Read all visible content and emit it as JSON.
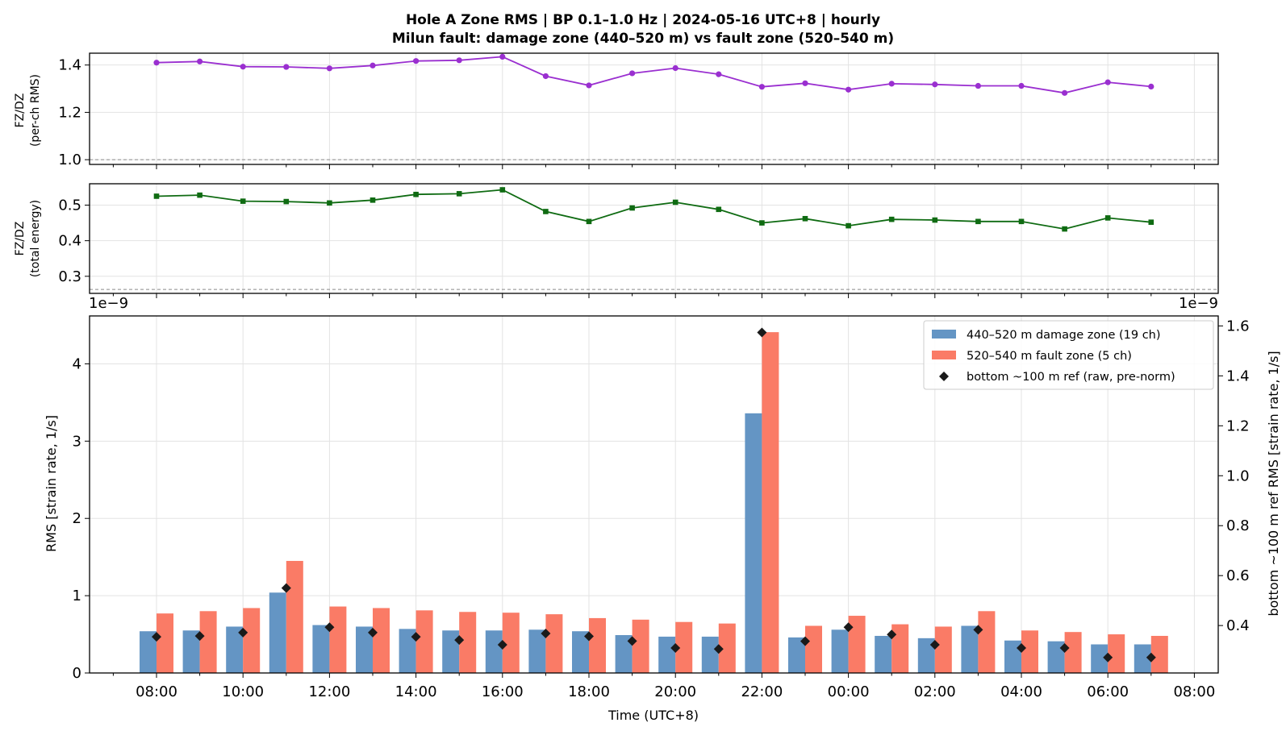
{
  "figure": {
    "title_line1": "Hole A Zone RMS  |  BP 0.1–1.0 Hz  |  2024-05-16 UTC+8  |  hourly",
    "title_line2": "Milun fault: damage zone (440–520 m) vs fault zone (520–540 m)"
  },
  "colors": {
    "damage": "#6495c4",
    "fault": "#fa7b66",
    "ref": "#1a1a1a",
    "ratio_rms": "#9a2fd0",
    "ratio_energy": "#0f6b12"
  },
  "chart_data": [
    {
      "type": "line",
      "ylabel_line1": "FZ/DZ",
      "ylabel_line2": "(per-ch RMS)",
      "ylim": [
        0.98,
        1.45
      ],
      "yticks": [
        1.0,
        1.2,
        1.4
      ],
      "ytick_labels": [
        "1.0",
        "1.2",
        "1.4"
      ],
      "reference_line": 1.0,
      "grid": true,
      "series": [
        {
          "values": [
            1.41,
            1.415,
            1.393,
            1.392,
            1.386,
            1.398,
            1.417,
            1.42,
            1.435,
            1.353,
            1.314,
            1.365,
            1.387,
            1.361,
            1.308,
            1.323,
            1.296,
            1.321,
            1.318,
            1.312,
            1.312,
            1.282,
            1.327,
            1.309
          ]
        }
      ]
    },
    {
      "type": "line",
      "ylabel_line1": "FZ/DZ",
      "ylabel_line2": "(total energy)",
      "ylim": [
        0.252,
        0.56
      ],
      "yticks": [
        0.3,
        0.4,
        0.5
      ],
      "ytick_labels": [
        "0.3",
        "0.4",
        "0.5"
      ],
      "reference_line": 0.263,
      "grid": true,
      "series": [
        {
          "values": [
            0.525,
            0.528,
            0.511,
            0.51,
            0.506,
            0.514,
            0.53,
            0.532,
            0.543,
            0.482,
            0.454,
            0.492,
            0.508,
            0.488,
            0.45,
            0.462,
            0.442,
            0.46,
            0.458,
            0.454,
            0.454,
            0.433,
            0.464,
            0.452
          ]
        }
      ]
    },
    {
      "type": "bar",
      "xlabel": "Time (UTC+8)",
      "ylabel": "RMS  [strain rate, 1/s]",
      "ylabel_right": "bottom ~100 m ref RMS  [strain rate, 1/s]",
      "scale_note_left": "1e−9",
      "scale_note_right": "1e−9",
      "ylim": [
        0,
        4.62
      ],
      "yticks": [
        0,
        1,
        2,
        3,
        4
      ],
      "ytick_labels": [
        "0",
        "1",
        "2",
        "3",
        "4"
      ],
      "ylim_right": [
        0.21,
        1.64
      ],
      "yticks_right": [
        0.4,
        0.6,
        0.8,
        1.0,
        1.2,
        1.4,
        1.6
      ],
      "ytick_labels_right": [
        "0.4",
        "0.6",
        "0.8",
        "1.0",
        "1.2",
        "1.4",
        "1.6"
      ],
      "legend_position": "upper right",
      "grid": true,
      "categories": [
        "08:00",
        "09:00",
        "10:00",
        "11:00",
        "12:00",
        "13:00",
        "14:00",
        "15:00",
        "16:00",
        "17:00",
        "18:00",
        "19:00",
        "20:00",
        "21:00",
        "22:00",
        "23:00",
        "00:00",
        "01:00",
        "02:00",
        "03:00",
        "04:00",
        "05:00",
        "06:00",
        "07:00"
      ],
      "xtick_labels": [
        "08:00",
        "10:00",
        "12:00",
        "14:00",
        "16:00",
        "18:00",
        "20:00",
        "22:00",
        "00:00",
        "02:00",
        "04:00",
        "06:00",
        "08:00"
      ],
      "series": [
        {
          "name": "440–520 m  damage zone (19 ch)",
          "values": [
            0.54,
            0.55,
            0.6,
            1.04,
            0.62,
            0.6,
            0.57,
            0.55,
            0.55,
            0.56,
            0.54,
            0.49,
            0.47,
            0.47,
            3.36,
            0.46,
            0.56,
            0.48,
            0.45,
            0.61,
            0.42,
            0.41,
            0.37,
            0.37
          ]
        },
        {
          "name": "520–540 m  fault zone (5 ch)",
          "values": [
            0.77,
            0.8,
            0.84,
            1.45,
            0.86,
            0.84,
            0.81,
            0.79,
            0.78,
            0.76,
            0.71,
            0.69,
            0.66,
            0.64,
            4.41,
            0.61,
            0.74,
            0.63,
            0.6,
            0.8,
            0.55,
            0.53,
            0.5,
            0.48
          ]
        },
        {
          "name": "bottom ~100 m ref (raw, pre-norm)",
          "axis": "right",
          "values": [
            0.355,
            0.358,
            0.372,
            0.55,
            0.393,
            0.372,
            0.355,
            0.342,
            0.323,
            0.368,
            0.357,
            0.338,
            0.31,
            0.306,
            1.574,
            0.337,
            0.393,
            0.364,
            0.323,
            0.383,
            0.31,
            0.31,
            0.272,
            0.272
          ]
        }
      ]
    }
  ]
}
